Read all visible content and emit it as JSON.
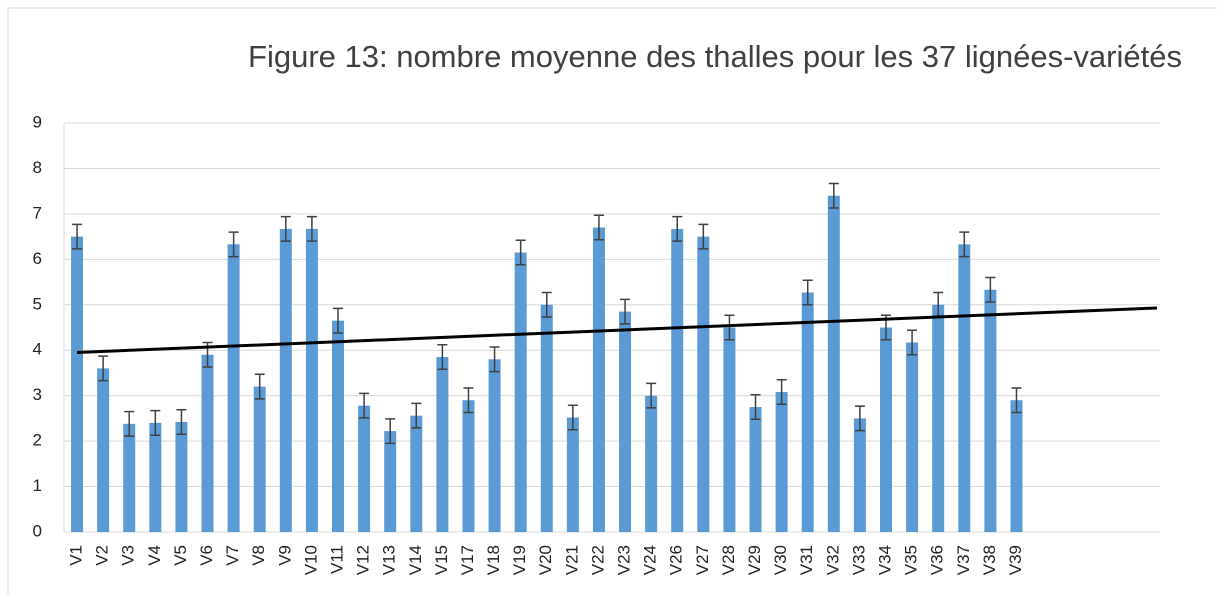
{
  "chart_data": {
    "type": "bar",
    "title": "Figure 13: nombre moyenne des thalles pour les 37 lignées-variétés",
    "categories": [
      "V1",
      "V2",
      "V3",
      "V4",
      "V5",
      "V6",
      "V7",
      "V8",
      "V9",
      "V10",
      "V11",
      "V12",
      "V13",
      "V14",
      "V15",
      "V17",
      "V18",
      "V19",
      "V20",
      "V21",
      "V22",
      "V23",
      "V24",
      "V26",
      "V27",
      "V28",
      "V29",
      "V30",
      "V31",
      "V32",
      "V33",
      "V34",
      "V35",
      "V36",
      "V37",
      "V38",
      "V39",
      null,
      null,
      null,
      null,
      null
    ],
    "values": [
      6.5,
      3.6,
      2.38,
      2.4,
      2.42,
      3.9,
      6.33,
      3.2,
      6.67,
      6.67,
      4.65,
      2.78,
      2.22,
      2.56,
      3.85,
      2.9,
      3.8,
      6.15,
      5.0,
      2.52,
      6.7,
      4.85,
      3.0,
      6.67,
      6.5,
      4.5,
      2.75,
      3.08,
      5.27,
      7.4,
      2.5,
      4.5,
      4.17,
      5.0,
      6.33,
      5.33,
      2.9,
      null,
      null,
      null,
      null,
      null
    ],
    "errors": [
      0.27,
      0.27,
      0.27,
      0.27,
      0.27,
      0.27,
      0.27,
      0.27,
      0.27,
      0.27,
      0.27,
      0.27,
      0.27,
      0.27,
      0.27,
      0.27,
      0.27,
      0.27,
      0.27,
      0.27,
      0.27,
      0.27,
      0.27,
      0.27,
      0.27,
      0.27,
      0.27,
      0.27,
      0.27,
      0.27,
      0.27,
      0.27,
      0.27,
      0.27,
      0.27,
      0.27,
      0.27,
      null,
      null,
      null,
      null,
      null
    ],
    "color": "#5b9bd5",
    "trendline": {
      "values": [
        3.95,
        4.93
      ],
      "color": "#000000"
    },
    "ylim": [
      0,
      9
    ],
    "yticks": [
      0,
      1,
      2,
      3,
      4,
      5,
      6,
      7,
      8,
      9
    ],
    "grid": true
  }
}
